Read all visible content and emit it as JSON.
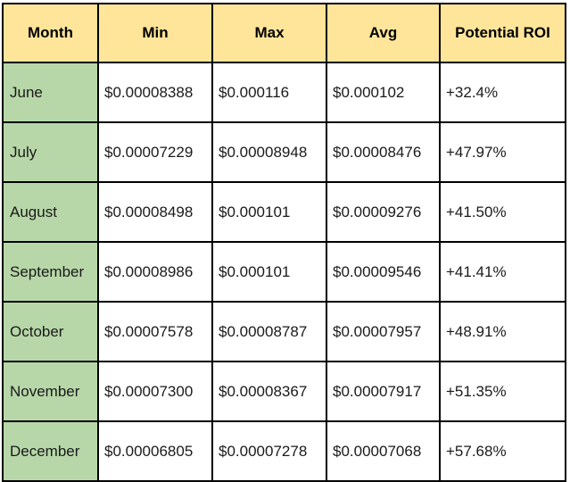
{
  "table": {
    "headers": [
      "Month",
      "Min",
      "Max",
      "Avg",
      "Potential ROI"
    ],
    "rows": [
      {
        "month": "June",
        "min": "$0.00008388",
        "max": "$0.000116",
        "avg": "$0.000102",
        "roi": "+32.4%"
      },
      {
        "month": "July",
        "min": "$0.00007229",
        "max": "$0.00008948",
        "avg": "$0.00008476",
        "roi": "+47.97%"
      },
      {
        "month": "August",
        "min": "$0.00008498",
        "max": "$0.000101",
        "avg": "$0.00009276",
        "roi": "+41.50%"
      },
      {
        "month": "September",
        "min": "$0.00008986",
        "max": "$0.000101",
        "avg": "$0.00009546",
        "roi": "+41.41%"
      },
      {
        "month": "October",
        "min": "$0.00007578",
        "max": "$0.00008787",
        "avg": "$0.00007957",
        "roi": "+48.91%"
      },
      {
        "month": "November",
        "min": "$0.00007300",
        "max": "$0.00008367",
        "avg": "$0.00007917",
        "roi": "+51.35%"
      },
      {
        "month": "December",
        "min": "$0.00006805",
        "max": "$0.00007278",
        "avg": "$0.00007068",
        "roi": "+57.68%"
      }
    ]
  },
  "colors": {
    "header_bg": "#ffe59a",
    "month_bg": "#b7d7a8",
    "border": "#000000"
  }
}
